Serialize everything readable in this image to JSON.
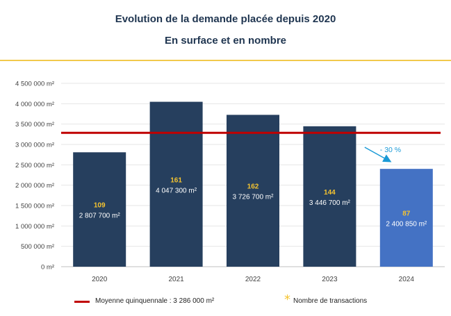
{
  "header": {
    "title": "Evolution de la demande placée depuis 2020",
    "subtitle": "En surface et en nombre"
  },
  "colors": {
    "bar": "#263f5e",
    "bar_highlight": "#4472c4",
    "average_line": "#c00000",
    "transactions_label": "#f5c430",
    "annotation": "#1a9ad6",
    "title": "#1f3550",
    "rule": "#f2c94c"
  },
  "chart_data": {
    "type": "bar",
    "title": "Evolution de la demande placée depuis 2020",
    "subtitle": "En surface et en nombre",
    "xlabel": "",
    "ylabel": "",
    "ylim": [
      0,
      4500000
    ],
    "yticks": [
      0,
      500000,
      1000000,
      1500000,
      2000000,
      2500000,
      3000000,
      3500000,
      4000000,
      4500000
    ],
    "ytick_labels": [
      "0 m²",
      "500 000 m²",
      "1 000 000 m²",
      "1 500 000 m²",
      "2 000 000 m²",
      "2 500 000 m²",
      "3 000 000 m²",
      "3 500 000 m²",
      "4 000 000 m²",
      "4 500 000 m²"
    ],
    "grid": true,
    "legend_position": "bottom",
    "categories": [
      "2020",
      "2021",
      "2022",
      "2023",
      "2024"
    ],
    "values": [
      2807700,
      4047300,
      3726700,
      3446700,
      2400850
    ],
    "value_labels": [
      "2 807 700 m²",
      "4 047 300 m²",
      "3 726 700 m²",
      "3 446 700 m²",
      "2 400 850 m²"
    ],
    "transactions": [
      109,
      161,
      162,
      144,
      87
    ],
    "highlight_index": 4,
    "average": {
      "value": 3286000,
      "label": "Moyenne quinquennale : 3 286 000 m²"
    },
    "annotation": {
      "text": "- 30 %",
      "target": "2024"
    },
    "legend": {
      "average_label": "Moyenne quinquennale : 3 286 000 m²",
      "transactions_label": "Nombre de transactions",
      "transactions_marker": "*"
    }
  }
}
